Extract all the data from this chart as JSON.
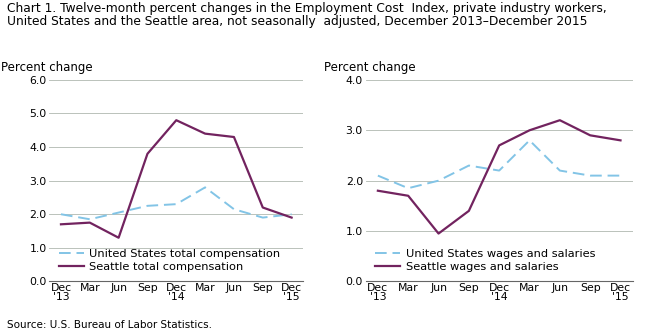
{
  "title_line1": "Chart 1. Twelve-month percent changes in the Employment Cost  Index, private industry workers,",
  "title_line2": "United States and the Seattle area, not seasonally  adjusted, December 2013–December 2015",
  "x_labels": [
    "Dec\n'13",
    "Mar",
    "Jun",
    "Sep",
    "Dec\n'14",
    "Mar",
    "Jun",
    "Sep",
    "Dec\n'15"
  ],
  "x_positions": [
    0,
    1,
    2,
    3,
    4,
    5,
    6,
    7,
    8
  ],
  "left_chart": {
    "ylabel": "Percent change",
    "ylim": [
      0.0,
      6.0
    ],
    "yticks": [
      0.0,
      1.0,
      2.0,
      3.0,
      4.0,
      5.0,
      6.0
    ],
    "us_total_comp": [
      2.0,
      1.85,
      2.05,
      2.25,
      2.3,
      2.8,
      2.15,
      1.9,
      2.0
    ],
    "seattle_total_comp": [
      1.7,
      1.75,
      1.3,
      3.8,
      4.8,
      4.4,
      4.3,
      2.2,
      1.9
    ],
    "legend": [
      "United States total compensation",
      "Seattle total compensation"
    ]
  },
  "right_chart": {
    "ylabel": "Percent change",
    "ylim": [
      0.0,
      4.0
    ],
    "yticks": [
      0.0,
      1.0,
      2.0,
      3.0,
      4.0
    ],
    "us_wages_salaries": [
      2.1,
      1.85,
      2.0,
      2.3,
      2.2,
      2.8,
      2.2,
      2.1,
      2.1
    ],
    "seattle_wages_salaries": [
      1.8,
      1.7,
      0.95,
      1.4,
      2.7,
      3.0,
      3.2,
      2.9,
      2.8
    ],
    "legend": [
      "United States wages and salaries",
      "Seattle wages and salaries"
    ]
  },
  "us_color": "#82C4E6",
  "seattle_color": "#72235F",
  "source": "Source: U.S. Bureau of Labor Statistics.",
  "title_fontsize": 8.8,
  "axis_label_fontsize": 8.5,
  "tick_fontsize": 7.8,
  "legend_fontsize": 8.2
}
